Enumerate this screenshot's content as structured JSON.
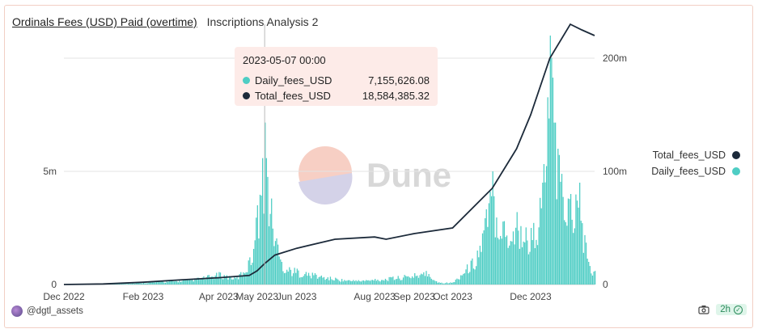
{
  "header": {
    "title": "Ordinals Fees (USD) Paid (overtime)",
    "subtitle": "Inscriptions Analysis 2"
  },
  "watermark": {
    "text": "Dune"
  },
  "tooltip": {
    "date": "2023-05-07 00:00",
    "rows": [
      {
        "name": "Daily_fees_USD",
        "value": "7,155,626.08",
        "color": "#4ecdc4"
      },
      {
        "name": "Total_fees_USD",
        "value": "18,584,385.32",
        "color": "#1c2a3a"
      }
    ]
  },
  "legend": [
    {
      "name": "Total_fees_USD",
      "color": "#1c2a3a"
    },
    {
      "name": "Daily_fees_USD",
      "color": "#4ecdc4"
    }
  ],
  "footer": {
    "author": "@dgtl_assets",
    "refresh": "2h"
  },
  "chart_data": {
    "type": "bar+line",
    "x_start": "2022-12-01",
    "x_end": "2024-01-20",
    "x_ticks": [
      "Dec 2022",
      "Feb 2023",
      "Apr 2023",
      "May 2023",
      "Jun 2023",
      "Aug 2023",
      "Sep 2023",
      "Oct 2023",
      "Dec 2023"
    ],
    "y_left": {
      "ticks": [
        "0",
        "5m"
      ],
      "tick_values": [
        0,
        5000000
      ],
      "range": [
        0,
        11500000
      ]
    },
    "y_right": {
      "ticks": [
        "0",
        "100m",
        "200m"
      ],
      "tick_values": [
        0,
        100000000,
        200000000
      ],
      "range": [
        0,
        230000000
      ]
    },
    "series": [
      {
        "name": "Daily_fees_USD",
        "type": "bar",
        "color": "#4ecdc4",
        "points": [
          [
            "2022-12-01",
            5000
          ],
          [
            "2022-12-15",
            8000
          ],
          [
            "2023-01-01",
            15000
          ],
          [
            "2023-01-15",
            40000
          ],
          [
            "2023-02-01",
            100000
          ],
          [
            "2023-02-15",
            150000
          ],
          [
            "2023-03-01",
            200000
          ],
          [
            "2023-03-15",
            300000
          ],
          [
            "2023-04-01",
            550000
          ],
          [
            "2023-04-15",
            350000
          ],
          [
            "2023-04-25",
            1200000
          ],
          [
            "2023-05-01",
            3500000
          ],
          [
            "2023-05-07",
            7155626
          ],
          [
            "2023-05-12",
            3800000
          ],
          [
            "2023-05-20",
            1000000
          ],
          [
            "2023-06-01",
            700000
          ],
          [
            "2023-06-15",
            500000
          ],
          [
            "2023-07-01",
            300000
          ],
          [
            "2023-07-15",
            200000
          ],
          [
            "2023-08-01",
            250000
          ],
          [
            "2023-08-15",
            350000
          ],
          [
            "2023-09-01",
            500000
          ],
          [
            "2023-09-10",
            600000
          ],
          [
            "2023-09-20",
            100000
          ],
          [
            "2023-10-01",
            100000
          ],
          [
            "2023-10-20",
            1500000
          ],
          [
            "2023-11-01",
            5000000
          ],
          [
            "2023-11-10",
            2800000
          ],
          [
            "2023-11-20",
            3200000
          ],
          [
            "2023-12-01",
            2500000
          ],
          [
            "2023-12-10",
            4500000
          ],
          [
            "2023-12-16",
            11000000
          ],
          [
            "2023-12-22",
            6000000
          ],
          [
            "2024-01-01",
            4000000
          ],
          [
            "2024-01-08",
            4500000
          ],
          [
            "2024-01-15",
            1000000
          ],
          [
            "2024-01-20",
            600000
          ]
        ]
      },
      {
        "name": "Total_fees_USD",
        "type": "line",
        "color": "#1c2a3a",
        "points": [
          [
            "2022-12-01",
            0
          ],
          [
            "2023-01-01",
            500000
          ],
          [
            "2023-02-01",
            2000000
          ],
          [
            "2023-03-01",
            4000000
          ],
          [
            "2023-04-01",
            6000000
          ],
          [
            "2023-04-25",
            8000000
          ],
          [
            "2023-05-01",
            12000000
          ],
          [
            "2023-05-07",
            18584385
          ],
          [
            "2023-05-15",
            26000000
          ],
          [
            "2023-06-01",
            32000000
          ],
          [
            "2023-07-01",
            40000000
          ],
          [
            "2023-08-01",
            42000000
          ],
          [
            "2023-08-10",
            40000000
          ],
          [
            "2023-09-01",
            45000000
          ],
          [
            "2023-10-01",
            50000000
          ],
          [
            "2023-11-01",
            85000000
          ],
          [
            "2023-11-20",
            120000000
          ],
          [
            "2023-12-01",
            150000000
          ],
          [
            "2023-12-16",
            200000000
          ],
          [
            "2024-01-01",
            230000000
          ],
          [
            "2024-01-10",
            225000000
          ],
          [
            "2024-01-20",
            220000000
          ]
        ]
      }
    ]
  }
}
